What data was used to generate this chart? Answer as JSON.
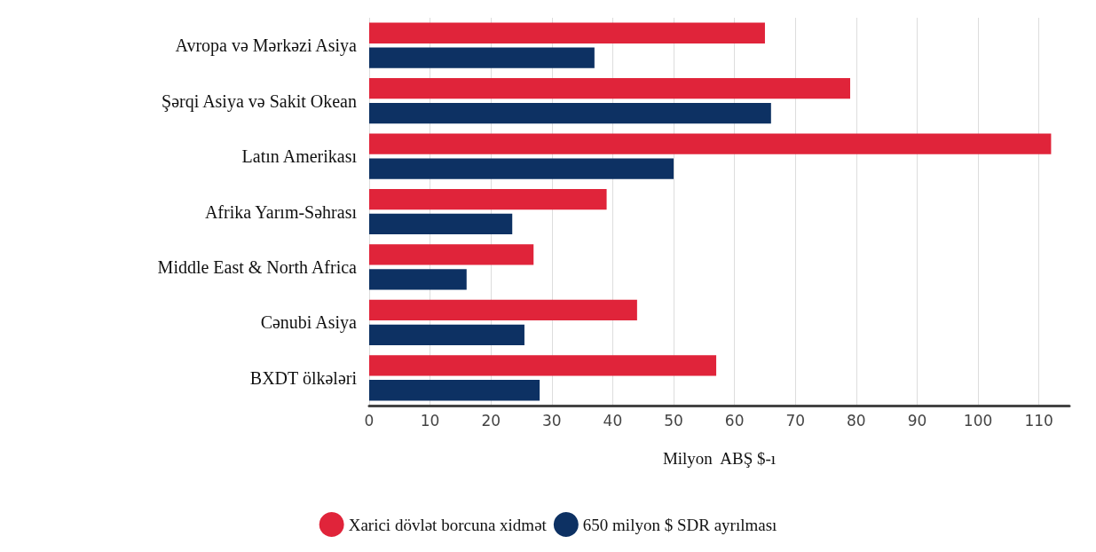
{
  "chart_data": {
    "type": "bar",
    "orientation": "horizontal",
    "xlabel": "Milyon  ABŞ $-ı",
    "categories": [
      "Avropa və Mərkəzi Asiya",
      "Şərqi Asiya və Sakit Okean",
      "Latın Amerikası",
      "Afrika Yarım-Səhrası",
      "Middle East & North Africa",
      "Cənubi Asiya",
      "BXDT ölkələri"
    ],
    "series": [
      {
        "name": "Xarici dövlət borcuna xidmət",
        "color": "#e0243a",
        "values": [
          65,
          79,
          112,
          39,
          27,
          44,
          57
        ]
      },
      {
        "name": "650 milyon $ SDR ayrılması",
        "color": "#0d3163",
        "values": [
          37,
          66,
          50,
          23.5,
          16,
          25.5,
          28
        ]
      }
    ],
    "xlim": [
      0,
      115
    ],
    "xticks": [
      0,
      10,
      20,
      30,
      40,
      50,
      60,
      70,
      80,
      90,
      100,
      110
    ],
    "grid": "x",
    "legend": "bottom"
  }
}
